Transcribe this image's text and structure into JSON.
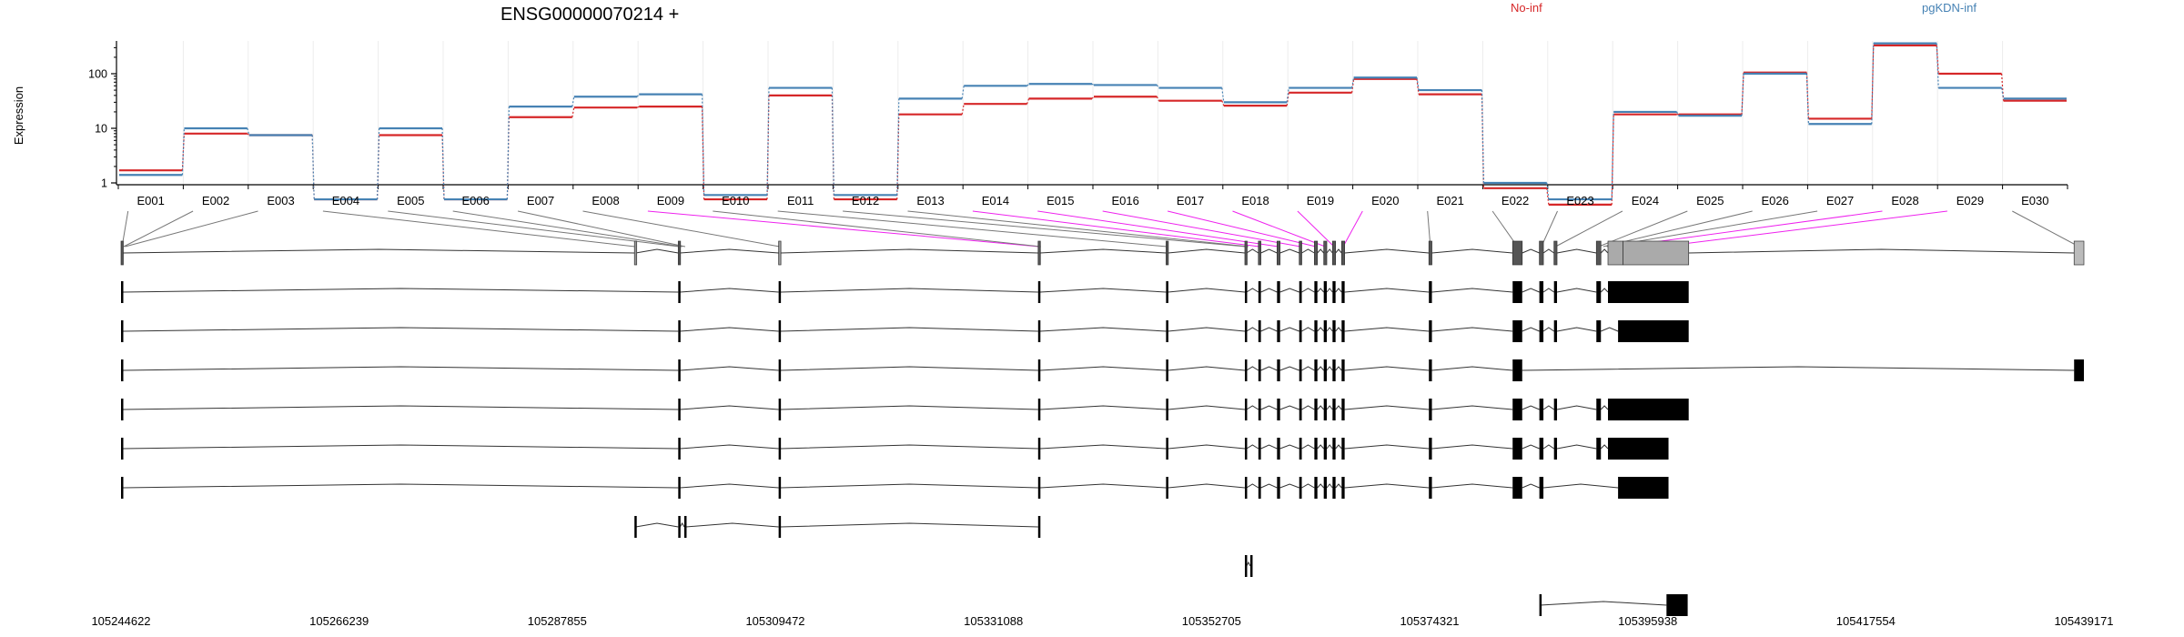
{
  "chart_data": {
    "type": "line",
    "title": "ENSG00000070214 +",
    "ylabel": "Expression",
    "yscale": "log",
    "ylim": [
      0.4,
      400
    ],
    "yticks": [
      1,
      10,
      100
    ],
    "grid": true,
    "legend_placement": "top",
    "categories": [
      "E001",
      "E002",
      "E003",
      "E004",
      "E005",
      "E006",
      "E007",
      "E008",
      "E009",
      "E010",
      "E011",
      "E012",
      "E013",
      "E014",
      "E015",
      "E016",
      "E017",
      "E018",
      "E019",
      "E020",
      "E021",
      "E022",
      "E023",
      "E024",
      "E025",
      "E026",
      "E027",
      "E028",
      "E029",
      "E030"
    ],
    "series": [
      {
        "name": "No-inf",
        "color": "#d62728",
        "values": [
          1.7,
          8,
          7.5,
          0.5,
          7.5,
          0.5,
          16,
          24,
          25,
          0.5,
          40,
          0.5,
          18,
          28,
          35,
          38,
          32,
          26,
          45,
          80,
          42,
          0.8,
          0.4,
          18,
          18,
          105,
          15,
          330,
          100,
          32
        ]
      },
      {
        "name": "pgKDN-inf",
        "color": "#4682b4",
        "values": [
          1.4,
          10,
          7.5,
          0.5,
          10,
          0.5,
          25,
          38,
          42,
          0.6,
          55,
          0.6,
          35,
          60,
          65,
          62,
          55,
          30,
          55,
          85,
          50,
          1.0,
          0.5,
          20,
          17,
          100,
          12,
          360,
          55,
          35
        ]
      }
    ],
    "genomic_coordinates": [
      "105244622",
      "105266239",
      "105287855",
      "105309472",
      "105331088",
      "105352705",
      "105374321",
      "105395938",
      "105417554",
      "105439171"
    ],
    "transcripts_count": 10,
    "highlight_color": "#ee22ee"
  }
}
